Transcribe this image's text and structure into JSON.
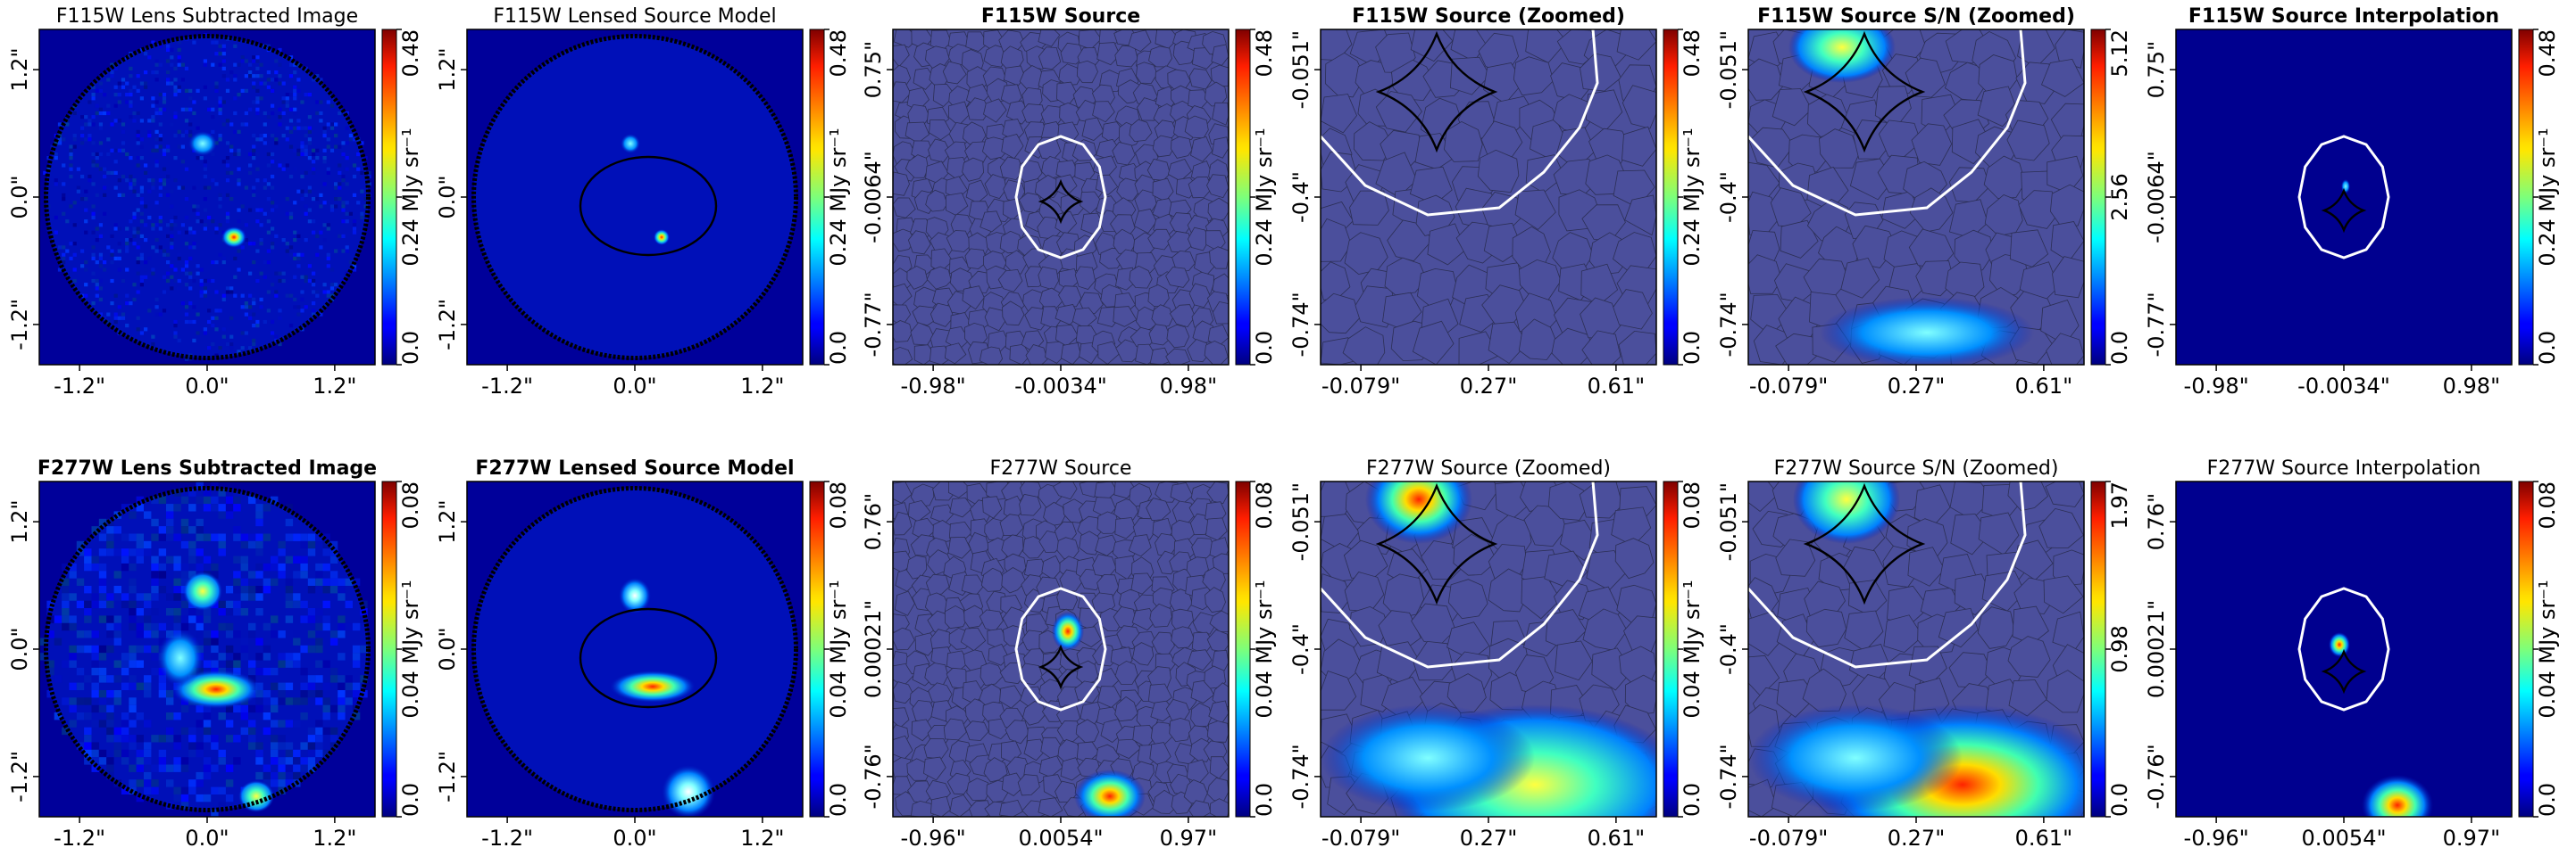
{
  "figure": {
    "colormap": "jet",
    "colorbar_unit": "MJy sr⁻¹"
  },
  "chart_data": [
    {
      "type": "heatmap",
      "row": 0,
      "col": 0,
      "kind": "image",
      "title": "F115W Lens Subtracted Image",
      "title_bold": false,
      "xticks": [
        "-1.2\"",
        "0.0\"",
        "1.2\""
      ],
      "yticks": [
        "-1.2\"",
        "0.0\"",
        "1.2\""
      ],
      "colorbar": {
        "ticks": [
          "0.0",
          "0.24",
          "0.48"
        ],
        "label": "MJy sr⁻¹",
        "range": [
          0,
          0.48
        ]
      }
    },
    {
      "type": "heatmap",
      "row": 0,
      "col": 1,
      "kind": "model",
      "title": "F115W Lensed Source Model",
      "title_bold": false,
      "xticks": [
        "-1.2\"",
        "0.0\"",
        "1.2\""
      ],
      "yticks": [
        "-1.2\"",
        "0.0\"",
        "1.2\""
      ],
      "colorbar": {
        "ticks": [
          "0.0",
          "0.24",
          "0.48"
        ],
        "label": "MJy sr⁻¹",
        "range": [
          0,
          0.48
        ]
      }
    },
    {
      "type": "heatmap",
      "row": 0,
      "col": 2,
      "kind": "source",
      "title": "F115W Source",
      "title_bold": true,
      "xticks": [
        "-0.98\"",
        "-0.0034\"",
        "0.98\""
      ],
      "yticks": [
        "-0.77\"",
        "-0.0064\"",
        "0.75\""
      ],
      "colorbar": {
        "ticks": [
          "0.0",
          "0.24",
          "0.48"
        ],
        "label": "MJy sr⁻¹",
        "range": [
          0,
          0.48
        ]
      }
    },
    {
      "type": "heatmap",
      "row": 0,
      "col": 3,
      "kind": "zoom",
      "title": "F115W Source (Zoomed)",
      "title_bold": true,
      "xticks": [
        "-0.079\"",
        "0.27\"",
        "0.61\""
      ],
      "yticks": [
        "-0.74\"",
        "-0.4\"",
        "-0.051\""
      ],
      "colorbar": {
        "ticks": [
          "0.0",
          "0.24",
          "0.48"
        ],
        "label": "MJy sr⁻¹",
        "range": [
          0,
          0.48
        ]
      }
    },
    {
      "type": "heatmap",
      "row": 0,
      "col": 4,
      "kind": "zoom",
      "title": "F115W Source S/N (Zoomed)",
      "title_bold": true,
      "xticks": [
        "-0.079\"",
        "0.27\"",
        "0.61\""
      ],
      "yticks": [
        "-0.74\"",
        "-0.4\"",
        "-0.051\""
      ],
      "colorbar": {
        "ticks": [
          "0.0",
          "2.56",
          "5.12"
        ],
        "label": "",
        "range": [
          0,
          5.12
        ]
      }
    },
    {
      "type": "heatmap",
      "row": 0,
      "col": 5,
      "kind": "interp",
      "title": "F115W Source Interpolation",
      "title_bold": true,
      "xticks": [
        "-0.98\"",
        "-0.0034\"",
        "0.98\""
      ],
      "yticks": [
        "-0.77\"",
        "-0.0064\"",
        "0.75\""
      ],
      "colorbar": {
        "ticks": [
          "0.0",
          "0.24",
          "0.48"
        ],
        "label": "MJy sr⁻¹",
        "range": [
          0,
          0.48
        ]
      }
    },
    {
      "type": "heatmap",
      "row": 1,
      "col": 0,
      "kind": "image",
      "title": "F277W Lens Subtracted Image",
      "title_bold": true,
      "xticks": [
        "-1.2\"",
        "0.0\"",
        "1.2\""
      ],
      "yticks": [
        "-1.2\"",
        "0.0\"",
        "1.2\""
      ],
      "colorbar": {
        "ticks": [
          "0.0",
          "0.04",
          "0.08"
        ],
        "label": "MJy sr⁻¹",
        "range": [
          0,
          0.08
        ]
      }
    },
    {
      "type": "heatmap",
      "row": 1,
      "col": 1,
      "kind": "model",
      "title": "F277W Lensed Source Model",
      "title_bold": true,
      "xticks": [
        "-1.2\"",
        "0.0\"",
        "1.2\""
      ],
      "yticks": [
        "-1.2\"",
        "0.0\"",
        "1.2\""
      ],
      "colorbar": {
        "ticks": [
          "0.0",
          "0.04",
          "0.08"
        ],
        "label": "MJy sr⁻¹",
        "range": [
          0,
          0.08
        ]
      }
    },
    {
      "type": "heatmap",
      "row": 1,
      "col": 2,
      "kind": "source",
      "title": "F277W Source",
      "title_bold": false,
      "xticks": [
        "-0.96\"",
        "0.0054\"",
        "0.97\""
      ],
      "yticks": [
        "-0.76\"",
        "0.00021\"",
        "0.76\""
      ],
      "colorbar": {
        "ticks": [
          "0.0",
          "0.04",
          "0.08"
        ],
        "label": "MJy sr⁻¹",
        "range": [
          0,
          0.08
        ]
      }
    },
    {
      "type": "heatmap",
      "row": 1,
      "col": 3,
      "kind": "zoom",
      "title": "F277W Source (Zoomed)",
      "title_bold": false,
      "xticks": [
        "-0.079\"",
        "0.27\"",
        "0.61\""
      ],
      "yticks": [
        "-0.74\"",
        "-0.4\"",
        "-0.051\""
      ],
      "colorbar": {
        "ticks": [
          "0.0",
          "0.04",
          "0.08"
        ],
        "label": "MJy sr⁻¹",
        "range": [
          0,
          0.08
        ]
      }
    },
    {
      "type": "heatmap",
      "row": 1,
      "col": 4,
      "kind": "zoom",
      "title": "F277W Source S/N (Zoomed)",
      "title_bold": false,
      "xticks": [
        "-0.079\"",
        "0.27\"",
        "0.61\""
      ],
      "yticks": [
        "-0.74\"",
        "-0.4\"",
        "-0.051\""
      ],
      "colorbar": {
        "ticks": [
          "0.0",
          "0.98",
          "1.97"
        ],
        "label": "",
        "range": [
          0,
          1.97
        ]
      }
    },
    {
      "type": "heatmap",
      "row": 1,
      "col": 5,
      "kind": "interp",
      "title": "F277W Source Interpolation",
      "title_bold": false,
      "xticks": [
        "-0.96\"",
        "0.0054\"",
        "0.97\""
      ],
      "yticks": [
        "-0.76\"",
        "0.00021\"",
        "0.76\""
      ],
      "colorbar": {
        "ticks": [
          "0.0",
          "0.04",
          "0.08"
        ],
        "label": "MJy sr⁻¹",
        "range": [
          0,
          0.08
        ]
      }
    }
  ]
}
